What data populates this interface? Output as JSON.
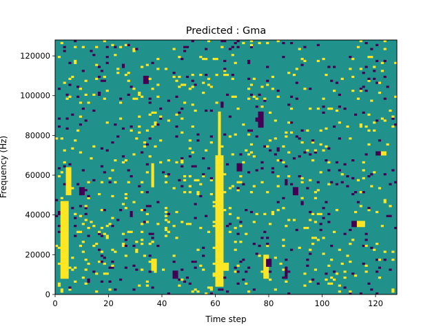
{
  "chart_data": {
    "type": "heatmap",
    "title": "Predicted : Gma",
    "xlabel": "Time step",
    "ylabel": "Frequency (Hz)",
    "xlim": [
      0,
      128
    ],
    "ylim": [
      0,
      128000
    ],
    "x_ticks": [
      0,
      20,
      40,
      60,
      80,
      100,
      120
    ],
    "y_ticks": [
      0,
      20000,
      40000,
      60000,
      80000,
      100000,
      120000
    ],
    "grid": false,
    "n_time_steps": 128,
    "n_freq_bins": 128,
    "colormap": {
      "background": "#21918c",
      "low": "#440154",
      "high": "#fde725"
    },
    "high_regions": [
      {
        "x": [
          2,
          5
        ],
        "y": [
          8000,
          47000
        ]
      },
      {
        "x": [
          4,
          6
        ],
        "y": [
          50000,
          64000
        ]
      },
      {
        "x": [
          60,
          63
        ],
        "y": [
          4000,
          70000
        ]
      },
      {
        "x": [
          61,
          62
        ],
        "y": [
          70000,
          92000
        ]
      },
      {
        "x": [
          63,
          65
        ],
        "y": [
          12000,
          16000
        ]
      },
      {
        "x": [
          78,
          80
        ],
        "y": [
          8000,
          20000
        ]
      },
      {
        "x": [
          113,
          116
        ],
        "y": [
          34000,
          37000
        ]
      },
      {
        "x": [
          36,
          38
        ],
        "y": [
          12000,
          18000
        ]
      },
      {
        "x": [
          122,
          124
        ],
        "y": [
          70000,
          72000
        ]
      },
      {
        "x": [
          36,
          37
        ],
        "y": [
          54000,
          66000
        ]
      }
    ],
    "low_regions": [
      {
        "x": [
          44,
          46
        ],
        "y": [
          8000,
          12000
        ]
      },
      {
        "x": [
          86,
          87
        ],
        "y": [
          8000,
          14000
        ]
      },
      {
        "x": [
          111,
          113
        ],
        "y": [
          34000,
          37000
        ]
      },
      {
        "x": [
          33,
          35
        ],
        "y": [
          106000,
          110000
        ]
      },
      {
        "x": [
          68,
          70
        ],
        "y": [
          62000,
          66000
        ]
      },
      {
        "x": [
          89,
          91
        ],
        "y": [
          50000,
          54000
        ]
      },
      {
        "x": [
          120,
          122
        ],
        "y": [
          70000,
          72000
        ]
      },
      {
        "x": [
          9,
          11
        ],
        "y": [
          50000,
          54000
        ]
      },
      {
        "x": [
          76,
          78
        ],
        "y": [
          84000,
          92000
        ]
      },
      {
        "x": [
          79,
          81
        ],
        "y": [
          14000,
          18000
        ]
      }
    ],
    "scatter_density": {
      "high": 0.035,
      "low": 0.025,
      "seed": 17
    }
  }
}
